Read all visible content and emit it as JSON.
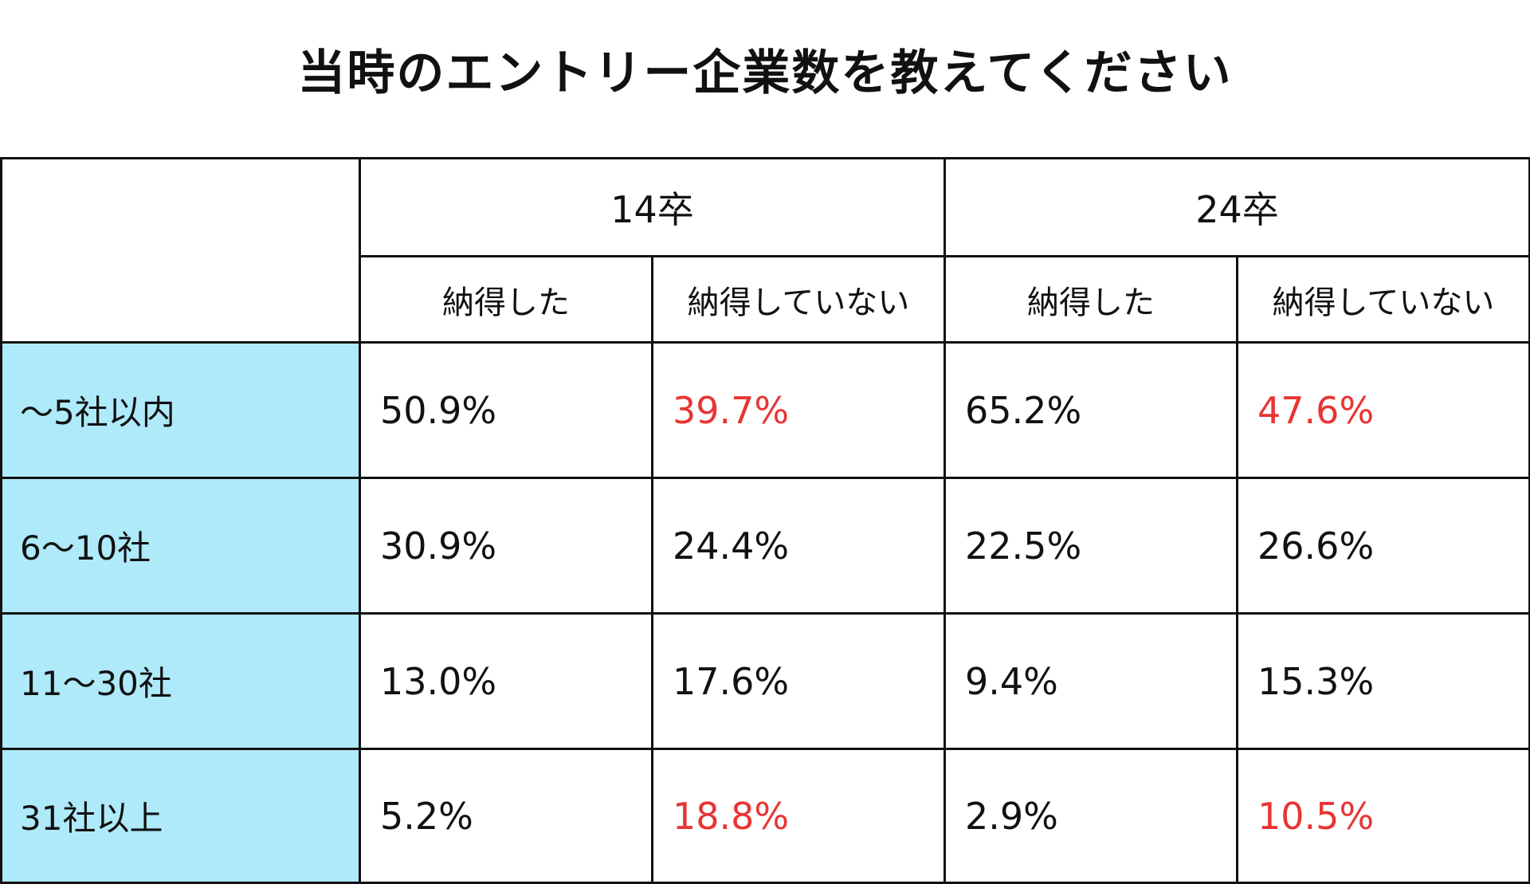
{
  "title": "当時のエントリー企業数を教えてください",
  "colors": {
    "highlight": "#e83535",
    "row_header_bg": "#aeeaf9"
  },
  "groups": [
    "14卒",
    "24卒"
  ],
  "subheaders": [
    "納得した",
    "納得していない",
    "納得した",
    "納得していない"
  ],
  "rows": [
    {
      "label": "〜5社以内",
      "values": [
        "50.9%",
        "39.7%",
        "65.2%",
        "47.6%"
      ],
      "highlight": [
        false,
        true,
        false,
        true
      ]
    },
    {
      "label": "6〜10社",
      "values": [
        "30.9%",
        "24.4%",
        "22.5%",
        "26.6%"
      ],
      "highlight": [
        false,
        false,
        false,
        false
      ]
    },
    {
      "label": "11〜30社",
      "values": [
        "13.0%",
        "17.6%",
        "9.4%",
        "15.3%"
      ],
      "highlight": [
        false,
        false,
        false,
        false
      ]
    },
    {
      "label": "31社以上",
      "values": [
        "5.2%",
        "18.8%",
        "2.9%",
        "10.5%"
      ],
      "highlight": [
        false,
        true,
        false,
        true
      ]
    }
  ],
  "chart_data": {
    "type": "table",
    "title": "当時のエントリー企業数を教えてください",
    "column_groups": [
      "14卒",
      "24卒"
    ],
    "columns": [
      "納得した",
      "納得していない",
      "納得した",
      "納得していない"
    ],
    "row_labels": [
      "〜5社以内",
      "6〜10社",
      "11〜30社",
      "31社以上"
    ],
    "series": [
      {
        "group": "14卒",
        "name": "納得した",
        "values": [
          50.9,
          30.9,
          13.0,
          5.2
        ]
      },
      {
        "group": "14卒",
        "name": "納得していない",
        "values": [
          39.7,
          24.4,
          17.6,
          18.8
        ]
      },
      {
        "group": "24卒",
        "name": "納得した",
        "values": [
          65.2,
          22.5,
          9.4,
          2.9
        ]
      },
      {
        "group": "24卒",
        "name": "納得していない",
        "values": [
          47.6,
          26.6,
          15.3,
          10.5
        ]
      }
    ],
    "unit": "%"
  }
}
